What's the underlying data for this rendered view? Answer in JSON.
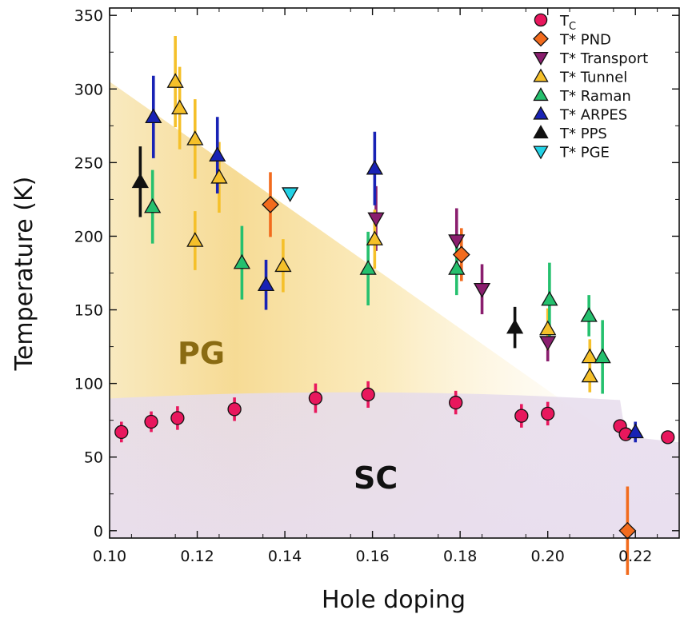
{
  "chart_data": {
    "type": "scatter",
    "xlabel": "Hole doping",
    "ylabel": "Temperature (K)",
    "xlim": [
      0.1,
      0.23
    ],
    "ylim": [
      -5,
      355
    ],
    "x_ticks": [
      "0.10",
      "0.12",
      "0.14",
      "0.16",
      "0.18",
      "0.20",
      "0.22"
    ],
    "y_ticks": [
      "0",
      "50",
      "100",
      "150",
      "200",
      "250",
      "300",
      "350"
    ],
    "grid": false,
    "legend_position": "top-right",
    "regions": [
      {
        "label": "PG",
        "color": "#8a6b12"
      },
      {
        "label": "SC",
        "color": "#111111"
      }
    ],
    "series": [
      {
        "name": "T",
        "name_sub": "C",
        "marker": "circle",
        "fill": "#e8175d",
        "err_color": "#e8175d",
        "points": [
          {
            "x": 0.1027,
            "y": 67,
            "err": 7
          },
          {
            "x": 0.1095,
            "y": 74,
            "err": 7
          },
          {
            "x": 0.1155,
            "y": 76.5,
            "err": 8
          },
          {
            "x": 0.1285,
            "y": 82.5,
            "err": 8
          },
          {
            "x": 0.147,
            "y": 90,
            "err": 10
          },
          {
            "x": 0.159,
            "y": 92.5,
            "err": 9
          },
          {
            "x": 0.179,
            "y": 87,
            "err": 8
          },
          {
            "x": 0.194,
            "y": 78,
            "err": 8
          },
          {
            "x": 0.2,
            "y": 79.5,
            "err": 8
          },
          {
            "x": 0.2165,
            "y": 71,
            "err": 0
          },
          {
            "x": 0.2178,
            "y": 65.5,
            "err": 0
          },
          {
            "x": 0.2274,
            "y": 63.5,
            "err": 0
          }
        ]
      },
      {
        "name": "T* PND",
        "marker": "diamond",
        "fill": "#f26b1d",
        "err_color": "#f26b1d",
        "points": [
          {
            "x": 0.1367,
            "y": 221.5,
            "err": 22
          },
          {
            "x": 0.1803,
            "y": 187.5,
            "err": 18
          },
          {
            "x": 0.2182,
            "y": 0,
            "err": 30
          }
        ]
      },
      {
        "name": "T* Transport",
        "marker": "triangle-down",
        "fill": "#8a1e6e",
        "err_color": "#8a1e6e",
        "points": [
          {
            "x": 0.1608,
            "y": 212,
            "err": 22
          },
          {
            "x": 0.1792,
            "y": 197,
            "err": 22
          },
          {
            "x": 0.185,
            "y": 164,
            "err": 17
          },
          {
            "x": 0.2,
            "y": 128,
            "err": 13
          }
        ]
      },
      {
        "name": "T* Tunnel",
        "marker": "triangle-up",
        "fill": "#f5c02a",
        "err_color": "#f5c02a",
        "points": [
          {
            "x": 0.115,
            "y": 305,
            "err": 31
          },
          {
            "x": 0.116,
            "y": 287,
            "err": 28
          },
          {
            "x": 0.1195,
            "y": 266,
            "err": 27
          },
          {
            "x": 0.1195,
            "y": 197,
            "err": 20
          },
          {
            "x": 0.125,
            "y": 240,
            "err": 24
          },
          {
            "x": 0.1396,
            "y": 180,
            "err": 18
          },
          {
            "x": 0.1605,
            "y": 198,
            "err": 20
          },
          {
            "x": 0.2,
            "y": 137,
            "err": 14
          },
          {
            "x": 0.2096,
            "y": 118,
            "err": 12
          },
          {
            "x": 0.2096,
            "y": 105,
            "err": 11
          }
        ]
      },
      {
        "name": "T* Raman",
        "marker": "triangle-up",
        "fill": "#25c06e",
        "err_color": "#25c06e",
        "points": [
          {
            "x": 0.1098,
            "y": 220,
            "err": 25
          },
          {
            "x": 0.1302,
            "y": 182,
            "err": 25
          },
          {
            "x": 0.159,
            "y": 178,
            "err": 25
          },
          {
            "x": 0.1792,
            "y": 178,
            "err": 18
          },
          {
            "x": 0.2004,
            "y": 157,
            "err": 25
          },
          {
            "x": 0.2094,
            "y": 146,
            "err": 14
          },
          {
            "x": 0.2125,
            "y": 118,
            "err": 25
          }
        ]
      },
      {
        "name": "T* ARPES",
        "marker": "triangle-up",
        "fill": "#1822b5",
        "err_color": "#1822b5",
        "points": [
          {
            "x": 0.11,
            "y": 281,
            "err": 28
          },
          {
            "x": 0.1246,
            "y": 255,
            "err": 26
          },
          {
            "x": 0.1357,
            "y": 167,
            "err": 17
          },
          {
            "x": 0.1605,
            "y": 246,
            "err": 25
          },
          {
            "x": 0.22,
            "y": 67,
            "err": 7
          }
        ]
      },
      {
        "name": "T* PPS",
        "marker": "triangle-up",
        "fill": "#111111",
        "err_color": "#111111",
        "points": [
          {
            "x": 0.107,
            "y": 237,
            "err": 24
          },
          {
            "x": 0.1925,
            "y": 138,
            "err": 14
          }
        ]
      },
      {
        "name": "T* PGE",
        "marker": "triangle-down",
        "fill": "#22d2e6",
        "err_color": "#22d2e6",
        "points": [
          {
            "x": 0.1412,
            "y": 229,
            "err": 0
          }
        ]
      }
    ]
  }
}
